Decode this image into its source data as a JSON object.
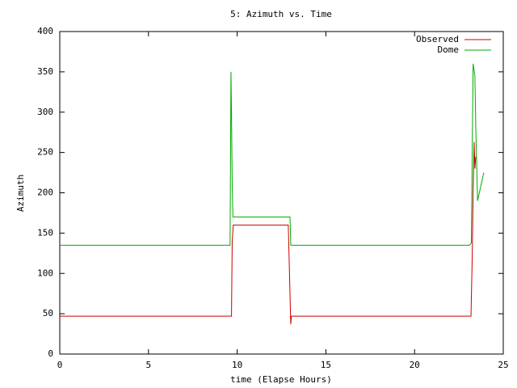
{
  "chart_data": {
    "type": "line",
    "title": "5: Azimuth vs. Time",
    "x_label": "time (Elapse Hours)",
    "y_label": "Azimuth",
    "xlim": [
      0,
      25
    ],
    "xticks": [
      0,
      5,
      10,
      15,
      20,
      25
    ],
    "ylim": [
      0,
      400
    ],
    "yticks": [
      0,
      50,
      100,
      150,
      200,
      250,
      300,
      350,
      400
    ],
    "legend": "top-right",
    "series": [
      {
        "name": "Observed",
        "color": "#cc0000",
        "x": [
          0,
          9.68,
          9.72,
          9.78,
          12.88,
          12.95,
          13.02,
          13.06,
          23.18,
          23.25,
          23.3,
          23.36,
          23.4,
          23.45
        ],
        "values": [
          47,
          47,
          140,
          160,
          160,
          100,
          37,
          47,
          47,
          120,
          200,
          263,
          230,
          245
        ]
      },
      {
        "name": "Dome",
        "color": "#00aa00",
        "x": [
          0,
          9.6,
          9.65,
          9.68,
          9.72,
          9.76,
          12.98,
          13.02,
          23.1,
          23.2,
          23.3,
          23.4,
          23.45,
          23.55,
          23.7,
          23.9
        ],
        "values": [
          135,
          135,
          350,
          300,
          210,
          170,
          170,
          135,
          135,
          138,
          360,
          345,
          280,
          190,
          205,
          225
        ]
      }
    ]
  }
}
